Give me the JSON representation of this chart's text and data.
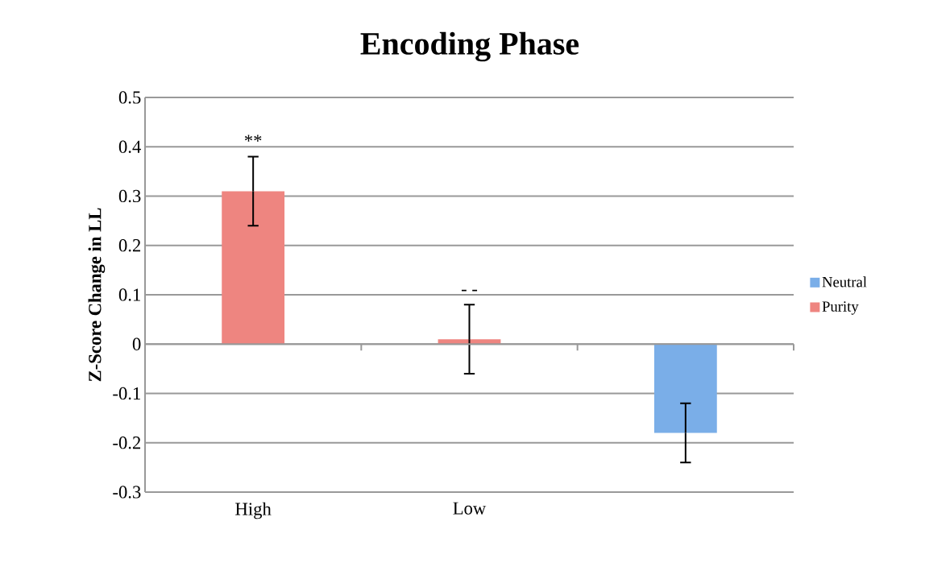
{
  "chart_data": {
    "type": "bar",
    "title": "Encoding Phase",
    "ylabel": "Z-Score Change in LL",
    "categories": [
      "High",
      "Low",
      null
    ],
    "series": [
      {
        "name": "Neutral",
        "color": "#7aaee8",
        "values": [
          null,
          null,
          -0.18
        ],
        "errors": [
          null,
          null,
          0.06
        ]
      },
      {
        "name": "Purity",
        "color": "#ee8580",
        "values": [
          0.31,
          0.01,
          null
        ],
        "errors": [
          0.07,
          0.07,
          null
        ]
      }
    ],
    "ylim": [
      -0.3,
      0.5
    ],
    "yticks": [
      -0.3,
      -0.2,
      -0.1,
      0,
      0.1,
      0.2,
      0.3,
      0.4,
      0.5
    ],
    "grid": "y",
    "legend": "right",
    "annotations": [
      "**",
      "- -"
    ]
  }
}
